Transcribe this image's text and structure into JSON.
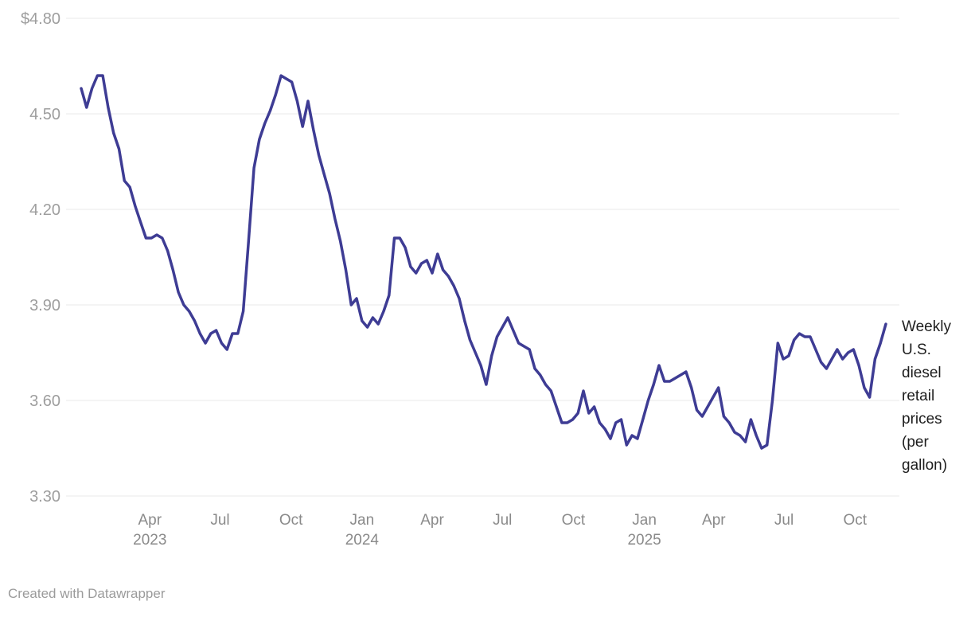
{
  "chart_data": {
    "type": "line",
    "title": "",
    "xlabel": "",
    "ylabel": "",
    "unit": "$ per gallon",
    "ylim": [
      3.3,
      4.8
    ],
    "grid": "horizontal",
    "legend_position": "end-of-line-label",
    "colors": {
      "line": "#3e3c94",
      "grid": "#e8e8e8",
      "y_label": "#9e9e9e",
      "x_label": "#8a8a8a",
      "annotation": "#1d1d1d",
      "footer": "#9b9b9b",
      "background": "#ffffff"
    },
    "y_ticks": [
      {
        "value": 4.8,
        "label": "$4.80"
      },
      {
        "value": 4.5,
        "label": "4.50"
      },
      {
        "value": 4.2,
        "label": "4.20"
      },
      {
        "value": 3.9,
        "label": "3.90"
      },
      {
        "value": 3.6,
        "label": "3.60"
      },
      {
        "value": 3.3,
        "label": "3.30"
      }
    ],
    "x_ticks": [
      {
        "date": "2023-04-01",
        "label": "Apr",
        "year_label": "2023"
      },
      {
        "date": "2023-07-01",
        "label": "Jul",
        "year_label": ""
      },
      {
        "date": "2023-10-01",
        "label": "Oct",
        "year_label": ""
      },
      {
        "date": "2024-01-01",
        "label": "Jan",
        "year_label": "2024"
      },
      {
        "date": "2024-04-01",
        "label": "Apr",
        "year_label": ""
      },
      {
        "date": "2024-07-01",
        "label": "Jul",
        "year_label": ""
      },
      {
        "date": "2024-10-01",
        "label": "Oct",
        "year_label": ""
      },
      {
        "date": "2025-01-01",
        "label": "Jan",
        "year_label": "2025"
      },
      {
        "date": "2025-04-01",
        "label": "Apr",
        "year_label": ""
      },
      {
        "date": "2025-07-01",
        "label": "Jul",
        "year_label": ""
      },
      {
        "date": "2025-10-01",
        "label": "Oct",
        "year_label": ""
      }
    ],
    "series": [
      {
        "name": "Weekly U.S. diesel retail prices (per gallon)",
        "frequency": "weekly",
        "dates": [
          "2023-01-02",
          "2023-01-09",
          "2023-01-16",
          "2023-01-23",
          "2023-01-30",
          "2023-02-06",
          "2023-02-13",
          "2023-02-20",
          "2023-02-27",
          "2023-03-06",
          "2023-03-13",
          "2023-03-20",
          "2023-03-27",
          "2023-04-03",
          "2023-04-10",
          "2023-04-17",
          "2023-04-24",
          "2023-05-01",
          "2023-05-08",
          "2023-05-15",
          "2023-05-22",
          "2023-05-29",
          "2023-06-05",
          "2023-06-12",
          "2023-06-19",
          "2023-06-26",
          "2023-07-03",
          "2023-07-10",
          "2023-07-17",
          "2023-07-24",
          "2023-07-31",
          "2023-08-07",
          "2023-08-14",
          "2023-08-21",
          "2023-08-28",
          "2023-09-04",
          "2023-09-11",
          "2023-09-18",
          "2023-09-25",
          "2023-10-02",
          "2023-10-09",
          "2023-10-16",
          "2023-10-23",
          "2023-10-30",
          "2023-11-06",
          "2023-11-13",
          "2023-11-20",
          "2023-11-27",
          "2023-12-04",
          "2023-12-11",
          "2023-12-18",
          "2023-12-25",
          "2024-01-01",
          "2024-01-08",
          "2024-01-15",
          "2024-01-22",
          "2024-01-29",
          "2024-02-05",
          "2024-02-12",
          "2024-02-19",
          "2024-02-26",
          "2024-03-04",
          "2024-03-11",
          "2024-03-18",
          "2024-03-25",
          "2024-04-01",
          "2024-04-08",
          "2024-04-15",
          "2024-04-22",
          "2024-04-29",
          "2024-05-06",
          "2024-05-13",
          "2024-05-20",
          "2024-05-27",
          "2024-06-03",
          "2024-06-10",
          "2024-06-17",
          "2024-06-24",
          "2024-07-01",
          "2024-07-08",
          "2024-07-15",
          "2024-07-22",
          "2024-07-29",
          "2024-08-05",
          "2024-08-12",
          "2024-08-19",
          "2024-08-26",
          "2024-09-02",
          "2024-09-09",
          "2024-09-16",
          "2024-09-23",
          "2024-09-30",
          "2024-10-07",
          "2024-10-14",
          "2024-10-21",
          "2024-10-28",
          "2024-11-04",
          "2024-11-11",
          "2024-11-18",
          "2024-11-25",
          "2024-12-02",
          "2024-12-09",
          "2024-12-16",
          "2024-12-23",
          "2024-12-30",
          "2025-01-06",
          "2025-01-13",
          "2025-01-20",
          "2025-01-27",
          "2025-02-03",
          "2025-02-10",
          "2025-02-17",
          "2025-02-24",
          "2025-03-03",
          "2025-03-10",
          "2025-03-17",
          "2025-03-24",
          "2025-03-31",
          "2025-04-07",
          "2025-04-14",
          "2025-04-21",
          "2025-04-28",
          "2025-05-05",
          "2025-05-12",
          "2025-05-19",
          "2025-05-26",
          "2025-06-02",
          "2025-06-09",
          "2025-06-16",
          "2025-06-23",
          "2025-06-30",
          "2025-07-07",
          "2025-07-14",
          "2025-07-21",
          "2025-07-28",
          "2025-08-04",
          "2025-08-11",
          "2025-08-18",
          "2025-08-25",
          "2025-09-01",
          "2025-09-08",
          "2025-09-15",
          "2025-09-22",
          "2025-09-29",
          "2025-10-06",
          "2025-10-13",
          "2025-10-20",
          "2025-10-27",
          "2025-11-03",
          "2025-11-10"
        ],
        "values": [
          4.58,
          4.52,
          4.58,
          4.62,
          4.62,
          4.52,
          4.44,
          4.39,
          4.29,
          4.27,
          4.21,
          4.16,
          4.11,
          4.11,
          4.12,
          4.11,
          4.07,
          4.01,
          3.94,
          3.9,
          3.88,
          3.85,
          3.81,
          3.78,
          3.81,
          3.82,
          3.78,
          3.76,
          3.81,
          3.81,
          3.88,
          4.1,
          4.33,
          4.42,
          4.47,
          4.51,
          4.56,
          4.62,
          4.61,
          4.6,
          4.54,
          4.46,
          4.54,
          4.45,
          4.37,
          4.31,
          4.25,
          4.17,
          4.1,
          4.01,
          3.9,
          3.92,
          3.85,
          3.83,
          3.86,
          3.84,
          3.88,
          3.93,
          4.11,
          4.11,
          4.08,
          4.02,
          4.0,
          4.03,
          4.04,
          4.0,
          4.06,
          4.01,
          3.99,
          3.96,
          3.92,
          3.85,
          3.79,
          3.75,
          3.71,
          3.65,
          3.74,
          3.8,
          3.83,
          3.86,
          3.82,
          3.78,
          3.77,
          3.76,
          3.7,
          3.68,
          3.65,
          3.63,
          3.58,
          3.53,
          3.53,
          3.54,
          3.56,
          3.63,
          3.56,
          3.58,
          3.53,
          3.51,
          3.48,
          3.53,
          3.54,
          3.46,
          3.49,
          3.48,
          3.54,
          3.6,
          3.65,
          3.71,
          3.66,
          3.66,
          3.67,
          3.68,
          3.69,
          3.64,
          3.57,
          3.55,
          3.58,
          3.61,
          3.64,
          3.55,
          3.53,
          3.5,
          3.49,
          3.47,
          3.54,
          3.49,
          3.45,
          3.46,
          3.6,
          3.78,
          3.73,
          3.74,
          3.79,
          3.81,
          3.8,
          3.8,
          3.76,
          3.72,
          3.7,
          3.73,
          3.76,
          3.73,
          3.75,
          3.76,
          3.71,
          3.64,
          3.61,
          3.73,
          3.78,
          3.84
        ]
      }
    ]
  },
  "annotation": {
    "label": "Weekly U.S. diesel retail prices (per gallon)"
  },
  "footer": {
    "credit": "Created with Datawrapper"
  }
}
